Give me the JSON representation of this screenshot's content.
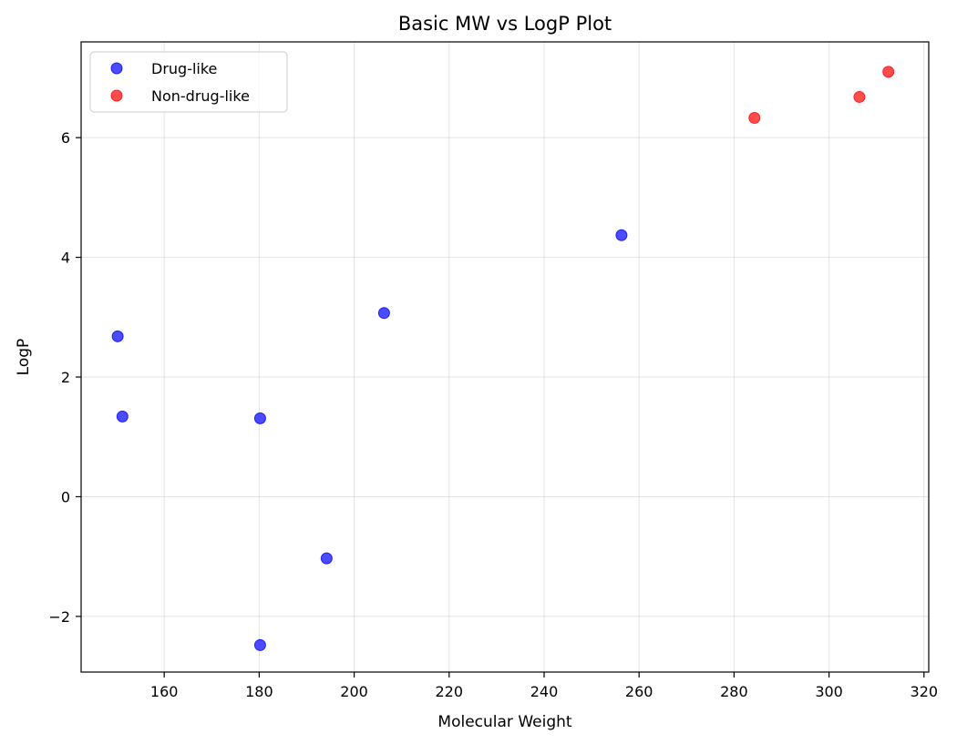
{
  "chart_data": {
    "type": "scatter",
    "title": "Basic MW vs LogP Plot",
    "xlabel": "Molecular Weight",
    "ylabel": "LogP",
    "xlim": [
      142.5,
      321
    ],
    "ylim": [
      -2.93,
      7.6
    ],
    "xticks": [
      160,
      180,
      200,
      220,
      240,
      260,
      280,
      300,
      320
    ],
    "yticks": [
      -2,
      0,
      2,
      4,
      6
    ],
    "grid": true,
    "legend": {
      "placement": "upper-left"
    },
    "series": [
      {
        "name": "Drug-like",
        "color": "#0000ff",
        "points": [
          {
            "x": 150.2,
            "y": 2.68
          },
          {
            "x": 151.2,
            "y": 1.34
          },
          {
            "x": 180.2,
            "y": 1.31
          },
          {
            "x": 180.2,
            "y": -2.48
          },
          {
            "x": 194.2,
            "y": -1.03
          },
          {
            "x": 206.3,
            "y": 3.07
          },
          {
            "x": 256.3,
            "y": 4.37
          }
        ]
      },
      {
        "name": "Non-drug-like",
        "color": "#ff0000",
        "points": [
          {
            "x": 284.3,
            "y": 6.33
          },
          {
            "x": 306.4,
            "y": 6.68
          },
          {
            "x": 312.5,
            "y": 7.1
          }
        ]
      }
    ]
  }
}
